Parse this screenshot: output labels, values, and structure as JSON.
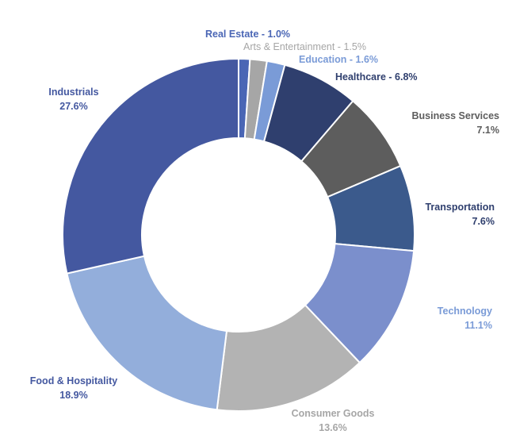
{
  "chart_data": {
    "type": "pie",
    "donut": true,
    "categories": [
      "Real Estate",
      "Arts & Entertainment",
      "Education",
      "Healthcare",
      "Business Services",
      "Transportation",
      "Technology",
      "Consumer Goods",
      "Food & Hospitality",
      "Industrials"
    ],
    "values": [
      1.0,
      1.5,
      1.6,
      6.8,
      7.1,
      7.6,
      11.1,
      13.6,
      18.9,
      27.6
    ],
    "slice_colors": [
      "#4a66b5",
      "#a6a6a6",
      "#7a9bd7",
      "#2f3f6e",
      "#5d5d5d",
      "#3b5a8c",
      "#7b8fcc",
      "#b3b3b3",
      "#93aedb",
      "#4458a0"
    ],
    "labels": [
      {
        "name": "Real Estate",
        "value_text": "1.0%",
        "color": "#4a66b5"
      },
      {
        "name": "Arts & Entertainment",
        "value_text": "1.5%",
        "color": "#a6a6a6"
      },
      {
        "name": "Education",
        "value_text": "1.6%",
        "color": "#7a9bd7"
      },
      {
        "name": "Healthcare",
        "value_text": "6.8%",
        "color": "#2f3f6e"
      },
      {
        "name": "Business Services",
        "value_text": "7.1%",
        "color": "#5d5d5d"
      },
      {
        "name": "Transportation",
        "value_text": "7.6%",
        "color": "#2f3f6e"
      },
      {
        "name": "Technology",
        "value_text": "11.1%",
        "color": "#7a9bd7"
      },
      {
        "name": "Consumer Goods",
        "value_text": "13.6%",
        "color": "#a6a6a6"
      },
      {
        "name": "Food & Hospitality",
        "value_text": "18.9%",
        "color": "#4458a0"
      },
      {
        "name": "Industrials",
        "value_text": "27.6%",
        "color": "#4458a0"
      }
    ],
    "legend": "none",
    "title": ""
  }
}
